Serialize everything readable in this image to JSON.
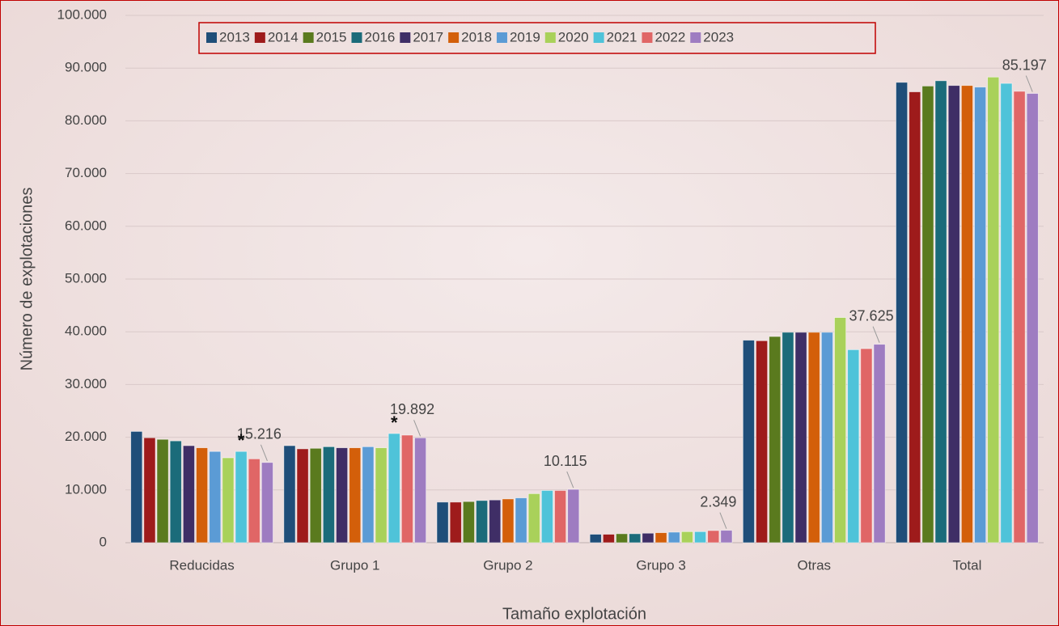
{
  "chart_data": {
    "type": "bar",
    "x_label": "Tamaño explotación",
    "y_label": "Número de explotaciones",
    "categories": [
      "Reducidas",
      "Grupo 1",
      "Grupo 2",
      "Grupo 3",
      "Otras",
      "Total"
    ],
    "series": [
      {
        "name": "2013",
        "color": "#1f4e79",
        "values": [
          21100,
          18400,
          7700,
          1600,
          38400,
          87300
        ]
      },
      {
        "name": "2014",
        "color": "#9e1b1b",
        "values": [
          19900,
          17800,
          7700,
          1600,
          38300,
          85500
        ]
      },
      {
        "name": "2015",
        "color": "#5a7a1e",
        "values": [
          19600,
          17900,
          7800,
          1700,
          39100,
          86600
        ]
      },
      {
        "name": "2016",
        "color": "#1b6b7a",
        "values": [
          19300,
          18200,
          8000,
          1700,
          39900,
          87600
        ]
      },
      {
        "name": "2017",
        "color": "#3f2e66",
        "values": [
          18400,
          18000,
          8100,
          1800,
          39900,
          86700
        ]
      },
      {
        "name": "2018",
        "color": "#d35f0a",
        "values": [
          18000,
          18000,
          8300,
          1900,
          39900,
          86700
        ]
      },
      {
        "name": "2019",
        "color": "#5b9bd5",
        "values": [
          17300,
          18200,
          8500,
          2000,
          39900,
          86400
        ]
      },
      {
        "name": "2020",
        "color": "#a9d15a",
        "values": [
          16100,
          18000,
          9300,
          2100,
          42700,
          88300
        ]
      },
      {
        "name": "2021",
        "color": "#4fc3d9",
        "values": [
          17300,
          20700,
          9900,
          2100,
          36600,
          87100
        ]
      },
      {
        "name": "2022",
        "color": "#e06666",
        "values": [
          15900,
          20400,
          9900,
          2300,
          36800,
          85600
        ]
      },
      {
        "name": "2023",
        "color": "#9e7cc1",
        "values": [
          15216,
          19892,
          10115,
          2349,
          37625,
          85197
        ],
        "value_labels": [
          "15.216",
          "19.892",
          "10.115",
          "2.349",
          "37.625",
          "85.197"
        ]
      }
    ],
    "annotations": [
      {
        "text": "*",
        "category": "Reducidas",
        "series": "2021"
      },
      {
        "text": "*",
        "category": "Grupo 1",
        "series": "2021"
      }
    ],
    "ylim": [
      0,
      100000
    ],
    "yticks": [
      0,
      {
        "value": 10000,
        "label": "10.000"
      },
      {
        "value": 20000,
        "label": "20.000"
      },
      {
        "value": 30000,
        "label": "30.000"
      },
      {
        "value": 40000,
        "label": "40.000"
      },
      {
        "value": 50000,
        "label": "50.000"
      },
      {
        "value": 60000,
        "label": "60.000"
      },
      {
        "value": 70000,
        "label": "70.000"
      },
      {
        "value": 80000,
        "label": "80.000"
      },
      {
        "value": 90000,
        "label": "90.000"
      },
      {
        "value": 100000,
        "label": "100.000"
      }
    ],
    "grid": true,
    "legend": "top"
  }
}
